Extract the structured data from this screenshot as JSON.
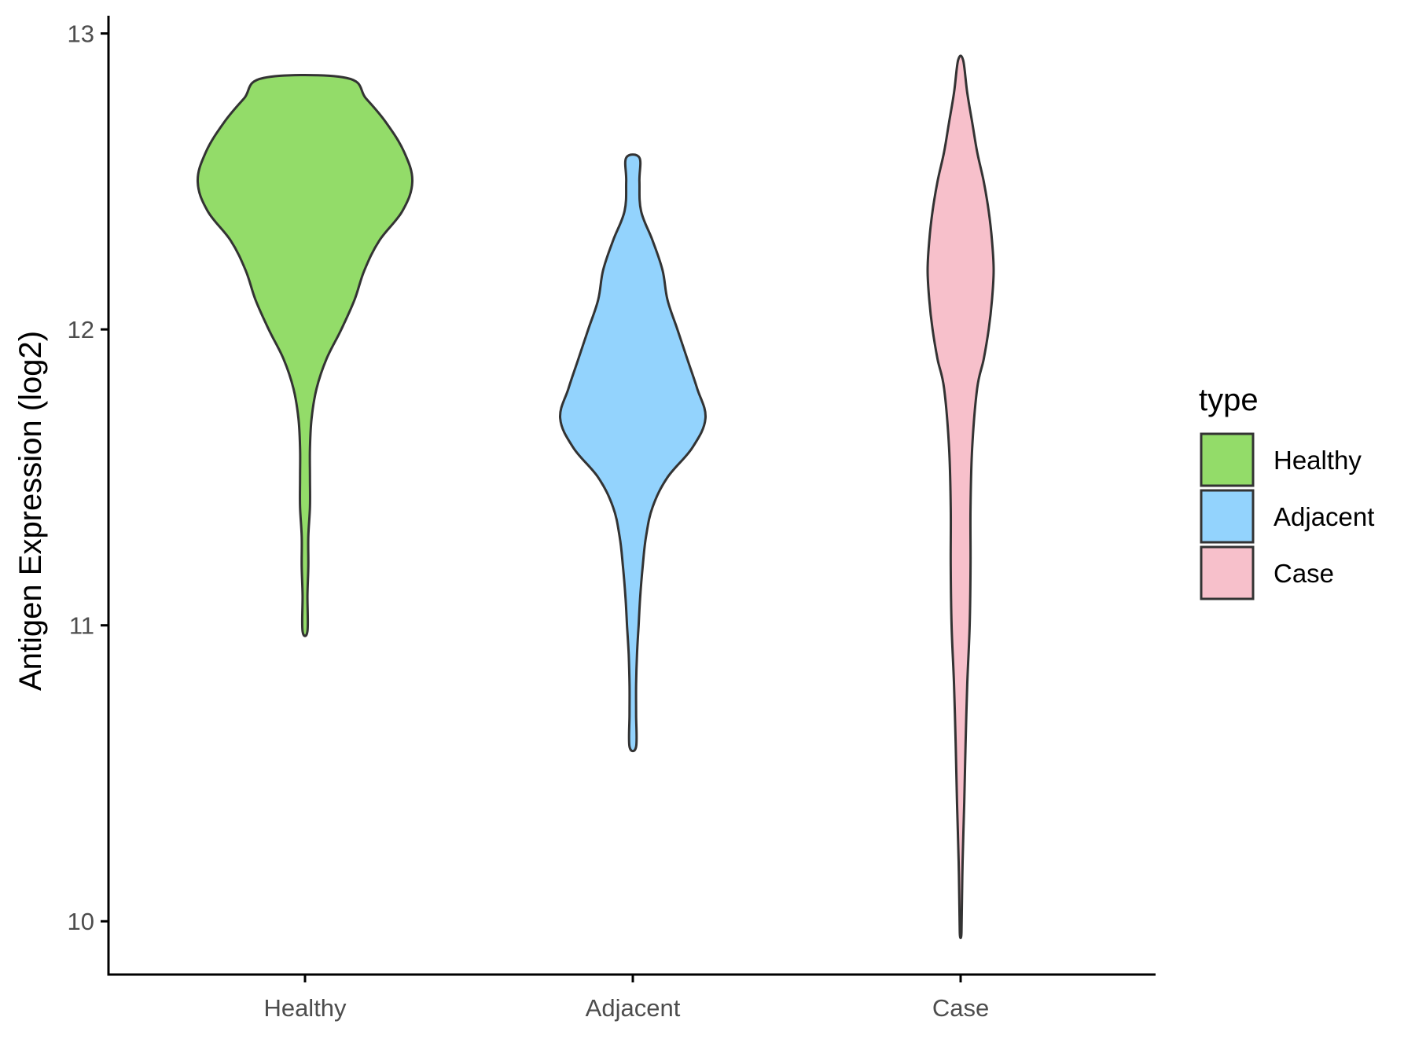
{
  "chart_data": {
    "type": "violin",
    "ylabel": "Antigen Expression (log2)",
    "xlabel": "",
    "ylim": [
      9.82,
      13.06
    ],
    "y_ticks": [
      10,
      11,
      12,
      13
    ],
    "categories": [
      "Healthy",
      "Adjacent",
      "Case"
    ],
    "legend": {
      "title": "type",
      "position": "right",
      "entries": [
        "Healthy",
        "Adjacent",
        "Case"
      ]
    },
    "colors": {
      "Healthy": "#93dc69",
      "Adjacent": "#93d3fd",
      "Case": "#f7c0cb",
      "outline": "#333333"
    },
    "series": [
      {
        "name": "Healthy",
        "min": 10.98,
        "max": 12.85,
        "profile": [
          [
            12.85,
            0.25
          ],
          [
            12.78,
            0.37
          ],
          [
            12.7,
            0.49
          ],
          [
            12.6,
            0.6
          ],
          [
            12.5,
            0.65
          ],
          [
            12.4,
            0.59
          ],
          [
            12.3,
            0.45
          ],
          [
            12.2,
            0.36
          ],
          [
            12.1,
            0.3
          ],
          [
            12.0,
            0.22
          ],
          [
            11.9,
            0.13
          ],
          [
            11.8,
            0.07
          ],
          [
            11.7,
            0.04
          ],
          [
            11.6,
            0.03
          ],
          [
            11.5,
            0.03
          ],
          [
            11.4,
            0.03
          ],
          [
            11.3,
            0.02
          ],
          [
            11.2,
            0.02
          ],
          [
            11.1,
            0.015
          ],
          [
            10.98,
            0.015
          ]
        ]
      },
      {
        "name": "Adjacent",
        "min": 10.59,
        "max": 12.58,
        "profile": [
          [
            12.58,
            0.04
          ],
          [
            12.5,
            0.04
          ],
          [
            12.4,
            0.05
          ],
          [
            12.3,
            0.12
          ],
          [
            12.2,
            0.18
          ],
          [
            12.1,
            0.21
          ],
          [
            12.0,
            0.27
          ],
          [
            11.9,
            0.33
          ],
          [
            11.8,
            0.39
          ],
          [
            11.7,
            0.44
          ],
          [
            11.6,
            0.36
          ],
          [
            11.5,
            0.21
          ],
          [
            11.4,
            0.12
          ],
          [
            11.3,
            0.08
          ],
          [
            11.2,
            0.06
          ],
          [
            11.1,
            0.045
          ],
          [
            11.0,
            0.035
          ],
          [
            10.9,
            0.025
          ],
          [
            10.8,
            0.02
          ],
          [
            10.7,
            0.02
          ],
          [
            10.59,
            0.02
          ]
        ]
      },
      {
        "name": "Case",
        "min": 9.95,
        "max": 12.91,
        "profile": [
          [
            12.91,
            0.015
          ],
          [
            12.8,
            0.04
          ],
          [
            12.7,
            0.07
          ],
          [
            12.6,
            0.1
          ],
          [
            12.5,
            0.14
          ],
          [
            12.4,
            0.17
          ],
          [
            12.3,
            0.19
          ],
          [
            12.2,
            0.2
          ],
          [
            12.1,
            0.19
          ],
          [
            12.0,
            0.17
          ],
          [
            11.9,
            0.14
          ],
          [
            11.8,
            0.1
          ],
          [
            11.6,
            0.07
          ],
          [
            11.4,
            0.06
          ],
          [
            11.2,
            0.06
          ],
          [
            11.0,
            0.055
          ],
          [
            10.8,
            0.04
          ],
          [
            10.6,
            0.03
          ],
          [
            10.4,
            0.022
          ],
          [
            10.2,
            0.012
          ],
          [
            10.0,
            0.006
          ],
          [
            9.95,
            0.004
          ]
        ]
      }
    ]
  }
}
